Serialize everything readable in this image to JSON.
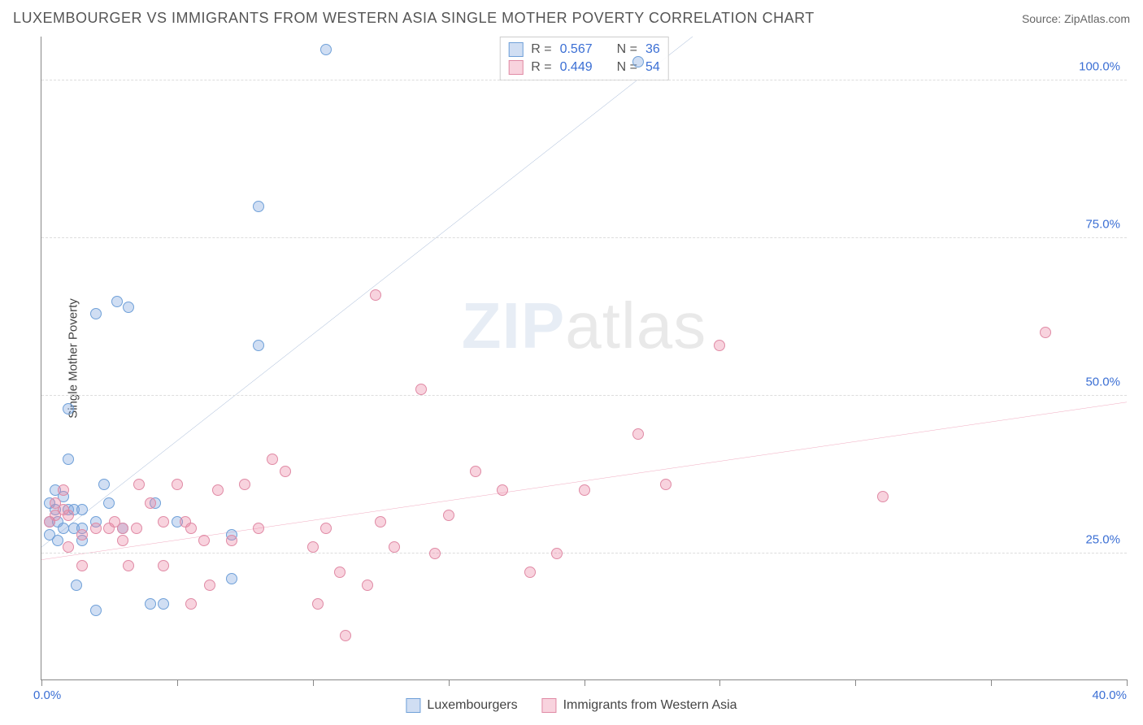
{
  "title": "LUXEMBOURGER VS IMMIGRANTS FROM WESTERN ASIA SINGLE MOTHER POVERTY CORRELATION CHART",
  "source": "Source: ZipAtlas.com",
  "watermark_bold": "ZIP",
  "watermark_rest": "atlas",
  "y_axis_label": "Single Mother Poverty",
  "chart": {
    "type": "scatter",
    "background_color": "#ffffff",
    "grid_color": "#dddddd",
    "axis_color": "#888888",
    "xlim": [
      0,
      40
    ],
    "ylim": [
      5,
      107
    ],
    "x_min_label": "0.0%",
    "x_max_label": "40.0%",
    "y_ticks": [
      25,
      50,
      75,
      100
    ],
    "y_tick_labels": [
      "25.0%",
      "50.0%",
      "75.0%",
      "100.0%"
    ],
    "x_tick_positions": [
      0,
      5,
      10,
      15,
      20,
      25,
      30,
      35,
      40
    ],
    "tick_label_color": "#3b6fd4",
    "series": [
      {
        "name": "Luxembourgers",
        "fill": "rgba(120,160,220,0.35)",
        "stroke": "#6fa0d8",
        "marker_size": 14,
        "r_value": "0.567",
        "n_value": "36",
        "trend": {
          "x1": 0,
          "y1": 26,
          "x2": 24,
          "y2": 107,
          "color": "#2c5aa0",
          "width": 2
        },
        "points": [
          [
            0.3,
            28
          ],
          [
            0.3,
            30
          ],
          [
            0.3,
            33
          ],
          [
            0.5,
            32
          ],
          [
            0.5,
            35
          ],
          [
            0.6,
            27
          ],
          [
            0.6,
            30
          ],
          [
            0.8,
            29
          ],
          [
            0.8,
            34
          ],
          [
            1,
            32
          ],
          [
            1,
            40
          ],
          [
            1,
            48
          ],
          [
            1.2,
            29
          ],
          [
            1.2,
            32
          ],
          [
            1.3,
            20
          ],
          [
            1.5,
            27
          ],
          [
            1.5,
            32
          ],
          [
            1.5,
            29
          ],
          [
            2,
            30
          ],
          [
            2,
            63
          ],
          [
            2,
            16
          ],
          [
            2.3,
            36
          ],
          [
            2.5,
            33
          ],
          [
            2.8,
            65
          ],
          [
            3,
            29
          ],
          [
            3.2,
            64
          ],
          [
            4,
            17
          ],
          [
            4.2,
            33
          ],
          [
            4.5,
            17
          ],
          [
            5,
            30
          ],
          [
            7,
            28
          ],
          [
            7,
            21
          ],
          [
            8,
            80
          ],
          [
            8,
            58
          ],
          [
            10.5,
            105
          ],
          [
            22,
            103
          ]
        ]
      },
      {
        "name": "Immigrants from Western Asia",
        "fill": "rgba(235,130,160,0.35)",
        "stroke": "#e08aa5",
        "marker_size": 14,
        "r_value": "0.449",
        "n_value": "54",
        "trend": {
          "x1": 0,
          "y1": 24,
          "x2": 40,
          "y2": 49,
          "color": "#e04a78",
          "width": 2
        },
        "points": [
          [
            0.3,
            30
          ],
          [
            0.5,
            31
          ],
          [
            0.5,
            33
          ],
          [
            0.8,
            32
          ],
          [
            0.8,
            35
          ],
          [
            1,
            26
          ],
          [
            1,
            31
          ],
          [
            1.5,
            28
          ],
          [
            1.5,
            23
          ],
          [
            2,
            29
          ],
          [
            2.5,
            29
          ],
          [
            2.7,
            30
          ],
          [
            3,
            27
          ],
          [
            3,
            29
          ],
          [
            3.2,
            23
          ],
          [
            3.5,
            29
          ],
          [
            3.6,
            36
          ],
          [
            4,
            33
          ],
          [
            4.5,
            30
          ],
          [
            4.5,
            23
          ],
          [
            5,
            36
          ],
          [
            5.3,
            30
          ],
          [
            5.5,
            29
          ],
          [
            5.5,
            17
          ],
          [
            6,
            27
          ],
          [
            6.2,
            20
          ],
          [
            6.5,
            35
          ],
          [
            7,
            27
          ],
          [
            7.5,
            36
          ],
          [
            8,
            29
          ],
          [
            8.5,
            40
          ],
          [
            9,
            38
          ],
          [
            10,
            26
          ],
          [
            10.2,
            17
          ],
          [
            10.5,
            29
          ],
          [
            11,
            22
          ],
          [
            11.2,
            12
          ],
          [
            12,
            20
          ],
          [
            12.3,
            66
          ],
          [
            12.5,
            30
          ],
          [
            13,
            26
          ],
          [
            14,
            51
          ],
          [
            14.5,
            25
          ],
          [
            15,
            31
          ],
          [
            16,
            38
          ],
          [
            17,
            35
          ],
          [
            18,
            22
          ],
          [
            19,
            25
          ],
          [
            20,
            35
          ],
          [
            22,
            44
          ],
          [
            23,
            36
          ],
          [
            25,
            58
          ],
          [
            31,
            34
          ],
          [
            37,
            60
          ]
        ]
      }
    ]
  },
  "stats_legend": {
    "r_label": "R =",
    "n_label": "N ="
  },
  "bottom_legend": {
    "items": [
      "Luxembourgers",
      "Immigrants from Western Asia"
    ]
  }
}
